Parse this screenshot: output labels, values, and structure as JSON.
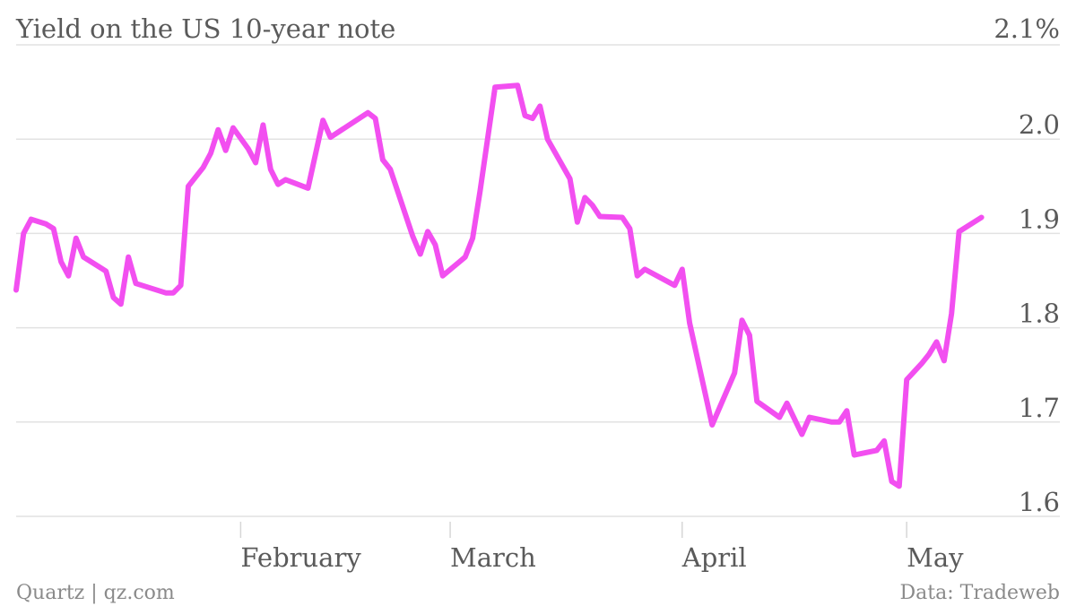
{
  "chart_data": {
    "type": "line",
    "title": "Yield on the US 10-year note",
    "unit_label": "2.1%",
    "source_left": "Quartz | qz.com",
    "source_right": "Data: Tradeweb",
    "xlabel": "",
    "ylabel": "",
    "ylim": [
      1.6,
      2.1
    ],
    "y_ticks": [
      {
        "value": 2.1,
        "label": "2.1%"
      },
      {
        "value": 2.0,
        "label": "2.0"
      },
      {
        "value": 1.9,
        "label": "1.9"
      },
      {
        "value": 1.8,
        "label": "1.8"
      },
      {
        "value": 1.7,
        "label": "1.7"
      },
      {
        "value": 1.6,
        "label": "1.6"
      }
    ],
    "x_ticks": [
      {
        "date": "2015-02-01",
        "label": "February"
      },
      {
        "date": "2015-03-01",
        "label": "March"
      },
      {
        "date": "2015-04-01",
        "label": "April"
      },
      {
        "date": "2015-05-01",
        "label": "May"
      }
    ],
    "xlim": [
      "2015-01-02",
      "2015-05-15"
    ],
    "grid": true,
    "series": [
      {
        "color": "#f24ff0",
        "points": [
          [
            "2015-01-02",
            1.84
          ],
          [
            "2015-01-03",
            1.9
          ],
          [
            "2015-01-04",
            1.915
          ],
          [
            "2015-01-06",
            1.91
          ],
          [
            "2015-01-07",
            1.905
          ],
          [
            "2015-01-08",
            1.87
          ],
          [
            "2015-01-09",
            1.855
          ],
          [
            "2015-01-10",
            1.895
          ],
          [
            "2015-01-11",
            1.875
          ],
          [
            "2015-01-13",
            1.865
          ],
          [
            "2015-01-14",
            1.86
          ],
          [
            "2015-01-15",
            1.832
          ],
          [
            "2015-01-16",
            1.825
          ],
          [
            "2015-01-17",
            1.875
          ],
          [
            "2015-01-18",
            1.847
          ],
          [
            "2015-01-22",
            1.837
          ],
          [
            "2015-01-23",
            1.837
          ],
          [
            "2015-01-24",
            1.845
          ],
          [
            "2015-01-25",
            1.95
          ],
          [
            "2015-01-27",
            1.97
          ],
          [
            "2015-01-28",
            1.985
          ],
          [
            "2015-01-29",
            2.01
          ],
          [
            "2015-01-30",
            1.988
          ],
          [
            "2015-01-31",
            2.012
          ],
          [
            "2015-02-02",
            1.99
          ],
          [
            "2015-02-03",
            1.975
          ],
          [
            "2015-02-04",
            2.015
          ],
          [
            "2015-02-05",
            1.968
          ],
          [
            "2015-02-06",
            1.952
          ],
          [
            "2015-02-07",
            1.957
          ],
          [
            "2015-02-10",
            1.948
          ],
          [
            "2015-02-12",
            2.02
          ],
          [
            "2015-02-13",
            2.002
          ],
          [
            "2015-02-18",
            2.028
          ],
          [
            "2015-02-19",
            2.022
          ],
          [
            "2015-02-20",
            1.978
          ],
          [
            "2015-02-21",
            1.968
          ],
          [
            "2015-02-24",
            1.897
          ],
          [
            "2015-02-25",
            1.878
          ],
          [
            "2015-02-26",
            1.902
          ],
          [
            "2015-02-27",
            1.888
          ],
          [
            "2015-02-28",
            1.855
          ],
          [
            "2015-03-03",
            1.875
          ],
          [
            "2015-03-04",
            1.895
          ],
          [
            "2015-03-05",
            1.945
          ],
          [
            "2015-03-07",
            2.055
          ],
          [
            "2015-03-10",
            2.057
          ],
          [
            "2015-03-11",
            2.025
          ],
          [
            "2015-03-12",
            2.022
          ],
          [
            "2015-03-13",
            2.035
          ],
          [
            "2015-03-14",
            2.0
          ],
          [
            "2015-03-17",
            1.958
          ],
          [
            "2015-03-18",
            1.912
          ],
          [
            "2015-03-19",
            1.938
          ],
          [
            "2015-03-20",
            1.93
          ],
          [
            "2015-03-21",
            1.918
          ],
          [
            "2015-03-24",
            1.917
          ],
          [
            "2015-03-25",
            1.905
          ],
          [
            "2015-03-26",
            1.855
          ],
          [
            "2015-03-27",
            1.862
          ],
          [
            "2015-03-31",
            1.845
          ],
          [
            "2015-04-01",
            1.862
          ],
          [
            "2015-04-02",
            1.805
          ],
          [
            "2015-04-05",
            1.697
          ],
          [
            "2015-04-08",
            1.752
          ],
          [
            "2015-04-09",
            1.808
          ],
          [
            "2015-04-10",
            1.792
          ],
          [
            "2015-04-11",
            1.722
          ],
          [
            "2015-04-14",
            1.705
          ],
          [
            "2015-04-15",
            1.72
          ],
          [
            "2015-04-17",
            1.687
          ],
          [
            "2015-04-18",
            1.705
          ],
          [
            "2015-04-21",
            1.7
          ],
          [
            "2015-04-22",
            1.7
          ],
          [
            "2015-04-23",
            1.712
          ],
          [
            "2015-04-24",
            1.665
          ],
          [
            "2015-04-27",
            1.67
          ],
          [
            "2015-04-28",
            1.68
          ],
          [
            "2015-04-29",
            1.637
          ],
          [
            "2015-04-30",
            1.632
          ],
          [
            "2015-05-01",
            1.745
          ],
          [
            "2015-05-03",
            1.762
          ],
          [
            "2015-05-04",
            1.772
          ],
          [
            "2015-05-05",
            1.785
          ],
          [
            "2015-05-06",
            1.765
          ],
          [
            "2015-05-07",
            1.815
          ],
          [
            "2015-05-08",
            1.902
          ],
          [
            "2015-05-11",
            1.917
          ]
        ]
      }
    ]
  }
}
